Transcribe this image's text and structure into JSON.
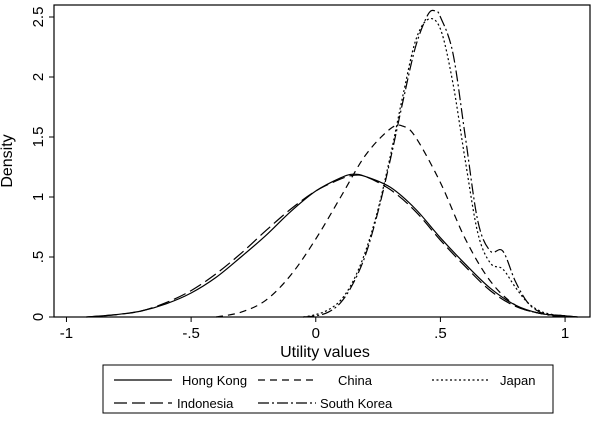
{
  "chart_data": {
    "type": "line",
    "title": "",
    "xlabel": "Utility values",
    "ylabel": "Density",
    "xlim": [
      -1.05,
      1.1
    ],
    "ylim": [
      0,
      2.6
    ],
    "xticks": [
      {
        "value": -1,
        "label": "-1"
      },
      {
        "value": -0.5,
        "label": "-.5"
      },
      {
        "value": 0,
        "label": "0"
      },
      {
        "value": 0.5,
        "label": ".5"
      },
      {
        "value": 1,
        "label": "1"
      }
    ],
    "yticks": [
      {
        "value": 0,
        "label": "0"
      },
      {
        "value": 0.5,
        "label": ".5"
      },
      {
        "value": 1,
        "label": "1"
      },
      {
        "value": 1.5,
        "label": "1.5"
      },
      {
        "value": 2,
        "label": "2"
      },
      {
        "value": 2.5,
        "label": "2.5"
      }
    ],
    "grid": false,
    "legend_position": "bottom",
    "series": [
      {
        "name": "Hong Kong",
        "style": "solid",
        "x": [
          -0.92,
          -0.8,
          -0.7,
          -0.6,
          -0.5,
          -0.4,
          -0.3,
          -0.2,
          -0.1,
          0.0,
          0.1,
          0.15,
          0.2,
          0.3,
          0.4,
          0.5,
          0.6,
          0.7,
          0.8,
          0.9,
          1.0,
          1.05
        ],
        "y": [
          0.0,
          0.02,
          0.05,
          0.11,
          0.2,
          0.33,
          0.5,
          0.68,
          0.88,
          1.05,
          1.16,
          1.19,
          1.17,
          1.08,
          0.9,
          0.66,
          0.44,
          0.24,
          0.1,
          0.03,
          0.01,
          0.0
        ]
      },
      {
        "name": "China",
        "style": "dashed",
        "x": [
          -0.4,
          -0.3,
          -0.2,
          -0.1,
          0.0,
          0.1,
          0.2,
          0.3,
          0.35,
          0.4,
          0.5,
          0.6,
          0.7,
          0.8,
          0.9,
          1.0
        ],
        "y": [
          0.0,
          0.04,
          0.14,
          0.35,
          0.65,
          1.0,
          1.35,
          1.57,
          1.59,
          1.5,
          1.12,
          0.65,
          0.3,
          0.1,
          0.03,
          0.01
        ]
      },
      {
        "name": "Japan",
        "style": "dotted",
        "x": [
          -0.05,
          0.0,
          0.05,
          0.1,
          0.15,
          0.2,
          0.25,
          0.3,
          0.35,
          0.4,
          0.45,
          0.5,
          0.55,
          0.6,
          0.65,
          0.7,
          0.75,
          0.8,
          0.85,
          0.9,
          0.95,
          1.0
        ],
        "y": [
          0.0,
          0.02,
          0.06,
          0.14,
          0.3,
          0.55,
          0.9,
          1.35,
          1.85,
          2.3,
          2.48,
          2.4,
          1.95,
          1.3,
          0.7,
          0.45,
          0.4,
          0.25,
          0.12,
          0.05,
          0.02,
          0.01
        ]
      },
      {
        "name": "Indonesia",
        "style": "longdash",
        "x": [
          -0.92,
          -0.8,
          -0.7,
          -0.6,
          -0.5,
          -0.4,
          -0.3,
          -0.2,
          -0.1,
          0.0,
          0.1,
          0.15,
          0.2,
          0.3,
          0.4,
          0.5,
          0.6,
          0.7,
          0.8,
          0.9,
          1.0,
          1.05
        ],
        "y": [
          0.0,
          0.02,
          0.05,
          0.12,
          0.22,
          0.36,
          0.53,
          0.72,
          0.9,
          1.05,
          1.15,
          1.18,
          1.17,
          1.06,
          0.88,
          0.64,
          0.42,
          0.22,
          0.09,
          0.03,
          0.01,
          0.0
        ]
      },
      {
        "name": "South Korea",
        "style": "dashdot",
        "x": [
          -0.05,
          0.0,
          0.05,
          0.1,
          0.15,
          0.2,
          0.25,
          0.3,
          0.35,
          0.4,
          0.45,
          0.48,
          0.5,
          0.55,
          0.6,
          0.65,
          0.7,
          0.75,
          0.8,
          0.85,
          0.9,
          0.95,
          1.0
        ],
        "y": [
          0.0,
          0.01,
          0.04,
          0.12,
          0.28,
          0.52,
          0.88,
          1.32,
          1.8,
          2.25,
          2.52,
          2.55,
          2.5,
          2.2,
          1.5,
          0.8,
          0.55,
          0.55,
          0.3,
          0.12,
          0.04,
          0.01,
          0.0
        ]
      }
    ]
  }
}
